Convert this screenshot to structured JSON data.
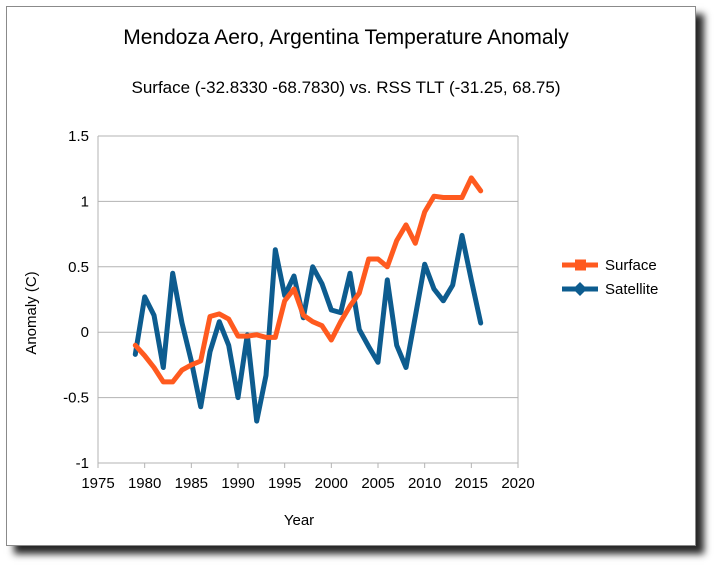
{
  "chart_data": {
    "type": "line",
    "title": "Mendoza Aero, Argentina Temperature Anomaly",
    "subtitle": "Surface (-32.8330  -68.7830) vs. RSS TLT (-31.25, 68.75)",
    "xlabel": "Year",
    "ylabel": "Anomaly (C)",
    "xlim": [
      1975,
      2020
    ],
    "ylim": [
      -1,
      1.5
    ],
    "xticks": [
      "1975",
      "1980",
      "1985",
      "1990",
      "1995",
      "2000",
      "2005",
      "2010",
      "2015",
      "2020"
    ],
    "yticks": [
      "-1",
      "-0.5",
      "0",
      "0.5",
      "1",
      "1.5"
    ],
    "grid": "horizontal",
    "legend_position": "right",
    "series": [
      {
        "name": "Surface",
        "color": "#ff5a1f",
        "marker": "square",
        "x": [
          1979,
          1980,
          1981,
          1982,
          1983,
          1984,
          1985,
          1986,
          1987,
          1988,
          1989,
          1990,
          1991,
          1992,
          1993,
          1994,
          1995,
          1996,
          1997,
          1998,
          1999,
          2000,
          2001,
          2002,
          2003,
          2004,
          2005,
          2006,
          2007,
          2008,
          2009,
          2010,
          2011,
          2012,
          2013,
          2014,
          2015,
          2016
        ],
        "y": [
          -0.1,
          -0.18,
          -0.27,
          -0.38,
          -0.38,
          -0.29,
          -0.25,
          -0.22,
          0.12,
          0.14,
          0.1,
          -0.03,
          -0.03,
          -0.02,
          -0.04,
          -0.04,
          0.24,
          0.33,
          0.13,
          0.08,
          0.05,
          -0.06,
          0.08,
          0.2,
          0.3,
          0.56,
          0.56,
          0.5,
          0.7,
          0.82,
          0.68,
          0.92,
          1.04,
          1.03,
          1.03,
          1.03,
          1.18,
          1.08
        ]
      },
      {
        "name": "Satellite",
        "color": "#0d5c8f",
        "marker": "diamond",
        "x": [
          1979,
          1980,
          1981,
          1982,
          1983,
          1984,
          1985,
          1986,
          1987,
          1988,
          1989,
          1990,
          1991,
          1992,
          1993,
          1994,
          1995,
          1996,
          1997,
          1998,
          1999,
          2000,
          2001,
          2002,
          2003,
          2004,
          2005,
          2006,
          2007,
          2008,
          2009,
          2010,
          2011,
          2012,
          2013,
          2014,
          2015,
          2016
        ],
        "y": [
          -0.17,
          0.27,
          0.13,
          -0.27,
          0.45,
          0.07,
          -0.22,
          -0.57,
          -0.15,
          0.08,
          -0.1,
          -0.5,
          -0.02,
          -0.68,
          -0.33,
          0.63,
          0.28,
          0.43,
          0.11,
          0.5,
          0.37,
          0.17,
          0.15,
          0.45,
          0.02,
          -0.11,
          -0.23,
          0.4,
          -0.1,
          -0.27,
          0.12,
          0.52,
          0.33,
          0.24,
          0.36,
          0.74,
          0.4,
          0.07
        ]
      }
    ]
  }
}
